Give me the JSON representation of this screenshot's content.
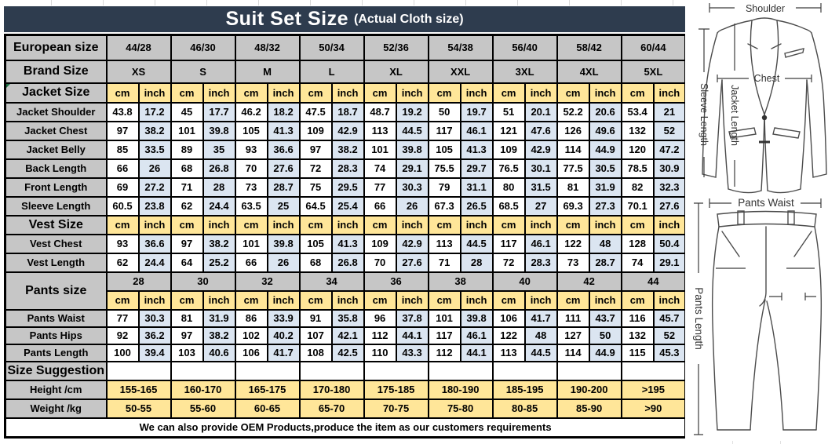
{
  "title": {
    "main": "Suit Set Size",
    "sub": "(Actual Cloth size)"
  },
  "size_table": {
    "units": [
      "cm",
      "inch"
    ],
    "european_size": {
      "label": "European size",
      "values": [
        "44/28",
        "46/30",
        "48/32",
        "50/34",
        "52/36",
        "54/38",
        "56/40",
        "58/42",
        "60/44"
      ]
    },
    "brand_size": {
      "label": "Brand Size",
      "values": [
        "XS",
        "S",
        "M",
        "L",
        "XL",
        "XXL",
        "3XL",
        "4XL",
        "5XL"
      ]
    },
    "jacket": {
      "label": "Jacket Size",
      "rows": [
        {
          "label": "Jacket Shoulder",
          "cm": [
            "43.8",
            "45",
            "46.2",
            "47.5",
            "48.7",
            "50",
            "51",
            "52.2",
            "53.4"
          ],
          "inch": [
            "17.2",
            "17.7",
            "18.2",
            "18.7",
            "19.2",
            "19.7",
            "20.1",
            "20.6",
            "21"
          ]
        },
        {
          "label": "Jacket Chest",
          "cm": [
            "97",
            "101",
            "105",
            "109",
            "113",
            "117",
            "121",
            "126",
            "132"
          ],
          "inch": [
            "38.2",
            "39.8",
            "41.3",
            "42.9",
            "44.5",
            "46.1",
            "47.6",
            "49.6",
            "52"
          ]
        },
        {
          "label": "Jacket Belly",
          "cm": [
            "85",
            "89",
            "93",
            "97",
            "101",
            "105",
            "109",
            "114",
            "120"
          ],
          "inch": [
            "33.5",
            "35",
            "36.6",
            "38.2",
            "39.8",
            "41.3",
            "42.9",
            "44.9",
            "47.2"
          ]
        },
        {
          "label": "Back Length",
          "cm": [
            "66",
            "68",
            "70",
            "72",
            "74",
            "75.5",
            "76.5",
            "77.5",
            "78.5"
          ],
          "inch": [
            "26",
            "26.8",
            "27.6",
            "28.3",
            "29.1",
            "29.7",
            "30.1",
            "30.5",
            "30.9"
          ]
        },
        {
          "label": "Front Length",
          "cm": [
            "69",
            "71",
            "73",
            "75",
            "77",
            "79",
            "80",
            "81",
            "82"
          ],
          "inch": [
            "27.2",
            "28",
            "28.7",
            "29.5",
            "30.3",
            "31.1",
            "31.5",
            "31.9",
            "32.3"
          ]
        },
        {
          "label": "Sleeve Length",
          "cm": [
            "60.5",
            "62",
            "63.5",
            "64.5",
            "66",
            "67.3",
            "68.5",
            "69.3",
            "70.1"
          ],
          "inch": [
            "23.8",
            "24.4",
            "25",
            "25.4",
            "26",
            "26.5",
            "27",
            "27.3",
            "27.6"
          ]
        }
      ]
    },
    "vest": {
      "label": "Vest Size",
      "rows": [
        {
          "label": "Vest Chest",
          "cm": [
            "93",
            "97",
            "101",
            "105",
            "109",
            "113",
            "117",
            "122",
            "128"
          ],
          "inch": [
            "36.6",
            "38.2",
            "39.8",
            "41.3",
            "42.9",
            "44.5",
            "46.1",
            "48",
            "50.4"
          ]
        },
        {
          "label": "Vest Length",
          "cm": [
            "62",
            "64",
            "66",
            "68",
            "70",
            "71",
            "72",
            "73",
            "74"
          ],
          "inch": [
            "24.4",
            "25.2",
            "26",
            "26.8",
            "27.6",
            "28",
            "28.3",
            "28.7",
            "29.1"
          ]
        }
      ]
    },
    "pants": {
      "label": "Pants size",
      "sizes": [
        "28",
        "30",
        "32",
        "34",
        "36",
        "38",
        "40",
        "42",
        "44"
      ],
      "rows": [
        {
          "label": "Pants Waist",
          "cm": [
            "77",
            "81",
            "86",
            "91",
            "96",
            "101",
            "106",
            "111",
            "116"
          ],
          "inch": [
            "30.3",
            "31.9",
            "33.9",
            "35.8",
            "37.8",
            "39.8",
            "41.7",
            "43.7",
            "45.7"
          ]
        },
        {
          "label": "Pants Hips",
          "cm": [
            "92",
            "97",
            "102",
            "107",
            "112",
            "117",
            "122",
            "127",
            "132"
          ],
          "inch": [
            "36.2",
            "38.2",
            "40.2",
            "42.1",
            "44.1",
            "46.1",
            "48",
            "50",
            "52"
          ]
        },
        {
          "label": "Pants Length",
          "cm": [
            "100",
            "103",
            "106",
            "108",
            "110",
            "112",
            "113",
            "114",
            "115"
          ],
          "inch": [
            "39.4",
            "40.6",
            "41.7",
            "42.5",
            "43.3",
            "44.1",
            "44.5",
            "44.9",
            "45.3"
          ]
        }
      ]
    },
    "suggestion": {
      "label": "Size Suggestion",
      "rows": [
        {
          "label": "Height /cm",
          "values": [
            "155-165",
            "160-170",
            "165-175",
            "170-180",
            "175-185",
            "180-190",
            "185-195",
            "190-200",
            ">195"
          ]
        },
        {
          "label": "Weight /kg",
          "values": [
            "50-55",
            "55-60",
            "60-65",
            "65-70",
            "70-75",
            "75-80",
            "80-85",
            "85-90",
            ">90"
          ]
        }
      ]
    },
    "note": "We can also provide OEM Products,produce the item as our customers requirements"
  },
  "diagram": {
    "shoulder": "Shoulder",
    "chest": "Chest",
    "jacket_length": "Jacket Length",
    "sleeve_length": "Sleeve Length",
    "pants_waist": "Pants Waist",
    "pants_length": "Pants Length"
  },
  "colors": {
    "title_bar": "#2e3c4e",
    "label_gray": "#c6c6c6",
    "unit_yellow": "#ffe699",
    "inch_blue": "#dbe5f1",
    "border_black": "#000000"
  }
}
